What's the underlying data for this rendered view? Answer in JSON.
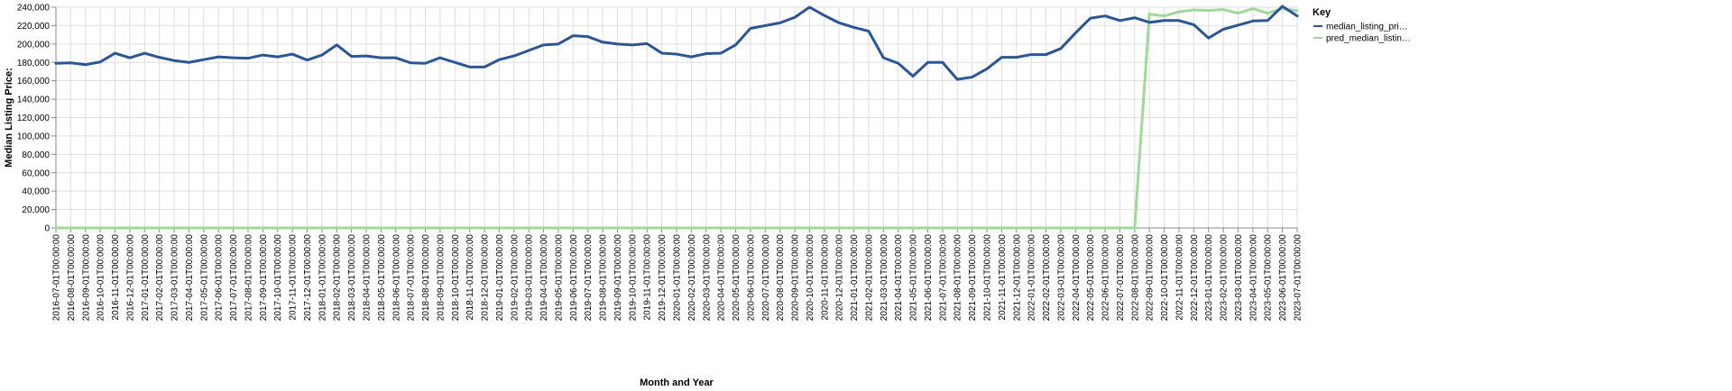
{
  "chart_data": {
    "type": "line",
    "xlabel": "Month and Year",
    "ylabel": "Median Listing Price:",
    "ylim": [
      0,
      240000
    ],
    "yticks": [
      "0",
      "20,000",
      "40,000",
      "60,000",
      "80,000",
      "100,000",
      "120,000",
      "140,000",
      "160,000",
      "180,000",
      "200,000",
      "220,000",
      "240,000"
    ],
    "grid": true,
    "legend": {
      "title": "Key",
      "position": "top-right",
      "entries": [
        {
          "label": "median_listing_pri…",
          "color": "#2c5596"
        },
        {
          "label": "pred_median_listin…",
          "color": "#9fd89a"
        }
      ]
    },
    "x": [
      "2016-07-01T00:00:00",
      "2016-08-01T00:00:00",
      "2016-09-01T00:00:00",
      "2016-10-01T00:00:00",
      "2016-11-01T00:00:00",
      "2016-12-01T00:00:00",
      "2017-01-01T00:00:00",
      "2017-02-01T00:00:00",
      "2017-03-01T00:00:00",
      "2017-04-01T00:00:00",
      "2017-05-01T00:00:00",
      "2017-06-01T00:00:00",
      "2017-07-01T00:00:00",
      "2017-08-01T00:00:00",
      "2017-09-01T00:00:00",
      "2017-10-01T00:00:00",
      "2017-11-01T00:00:00",
      "2017-12-01T00:00:00",
      "2018-01-01T00:00:00",
      "2018-02-01T00:00:00",
      "2018-03-01T00:00:00",
      "2018-04-01T00:00:00",
      "2018-05-01T00:00:00",
      "2018-06-01T00:00:00",
      "2018-07-01T00:00:00",
      "2018-08-01T00:00:00",
      "2018-09-01T00:00:00",
      "2018-10-01T00:00:00",
      "2018-11-01T00:00:00",
      "2018-12-01T00:00:00",
      "2019-01-01T00:00:00",
      "2019-02-01T00:00:00",
      "2019-03-01T00:00:00",
      "2019-04-01T00:00:00",
      "2019-05-01T00:00:00",
      "2019-06-01T00:00:00",
      "2019-07-01T00:00:00",
      "2019-08-01T00:00:00",
      "2019-09-01T00:00:00",
      "2019-10-01T00:00:00",
      "2019-11-01T00:00:00",
      "2019-12-01T00:00:00",
      "2020-01-01T00:00:00",
      "2020-02-01T00:00:00",
      "2020-03-01T00:00:00",
      "2020-04-01T00:00:00",
      "2020-05-01T00:00:00",
      "2020-06-01T00:00:00",
      "2020-07-01T00:00:00",
      "2020-08-01T00:00:00",
      "2020-09-01T00:00:00",
      "2020-10-01T00:00:00",
      "2020-11-01T00:00:00",
      "2020-12-01T00:00:00",
      "2021-01-01T00:00:00",
      "2021-02-01T00:00:00",
      "2021-03-01T00:00:00",
      "2021-04-01T00:00:00",
      "2021-05-01T00:00:00",
      "2021-06-01T00:00:00",
      "2021-07-01T00:00:00",
      "2021-08-01T00:00:00",
      "2021-09-01T00:00:00",
      "2021-10-01T00:00:00",
      "2021-11-01T00:00:00",
      "2021-12-01T00:00:00",
      "2022-01-01T00:00:00",
      "2022-02-01T00:00:00",
      "2022-03-01T00:00:00",
      "2022-04-01T00:00:00",
      "2022-05-01T00:00:00",
      "2022-06-01T00:00:00",
      "2022-07-01T00:00:00",
      "2022-08-01T00:00:00",
      "2022-09-01T00:00:00",
      "2022-10-01T00:00:00",
      "2022-11-01T00:00:00",
      "2022-12-01T00:00:00",
      "2023-01-01T00:00:00",
      "2023-02-01T00:00:00",
      "2023-03-01T00:00:00",
      "2023-04-01T00:00:00",
      "2023-05-01T00:00:00",
      "2023-06-01T00:00:00",
      "2023-07-01T00:00:00"
    ],
    "series": [
      {
        "name": "median_listing_pri…",
        "color": "#2c5596",
        "values": [
          179000,
          179500,
          177500,
          180500,
          190000,
          185000,
          190000,
          185500,
          182000,
          180000,
          183000,
          186000,
          185000,
          184500,
          188000,
          186000,
          189000,
          182500,
          188000,
          199000,
          186500,
          187000,
          185000,
          185000,
          179500,
          179000,
          185000,
          180000,
          175000,
          175000,
          183000,
          187000,
          193000,
          199000,
          200000,
          209000,
          208000,
          202000,
          200000,
          199000,
          200500,
          190000,
          189000,
          186000,
          189500,
          190000,
          199000,
          217000,
          220000,
          223000,
          229000,
          240000,
          231000,
          223000,
          218000,
          214000,
          185000,
          179000,
          165000,
          180000,
          180000,
          161500,
          164000,
          173000,
          185500,
          185500,
          188500,
          188500,
          195000,
          212000,
          228000,
          230500,
          225500,
          228500,
          223500,
          225500,
          225500,
          221000,
          206500,
          216000,
          220500,
          225000,
          225500,
          241000,
          230500
        ]
      },
      {
        "name": "pred_median_listin…",
        "color": "#9fd89a",
        "values": [
          0,
          0,
          0,
          0,
          0,
          0,
          0,
          0,
          0,
          0,
          0,
          0,
          0,
          0,
          0,
          0,
          0,
          0,
          0,
          0,
          0,
          0,
          0,
          0,
          0,
          0,
          0,
          0,
          0,
          0,
          0,
          0,
          0,
          0,
          0,
          0,
          0,
          0,
          0,
          0,
          0,
          0,
          0,
          0,
          0,
          0,
          0,
          0,
          0,
          0,
          0,
          0,
          0,
          0,
          0,
          0,
          0,
          0,
          0,
          0,
          0,
          0,
          0,
          0,
          0,
          0,
          0,
          0,
          0,
          0,
          0,
          0,
          0,
          0,
          232500,
          230500,
          235000,
          237000,
          236500,
          237500,
          233500,
          238500,
          233500,
          238500,
          236000
        ]
      }
    ]
  }
}
